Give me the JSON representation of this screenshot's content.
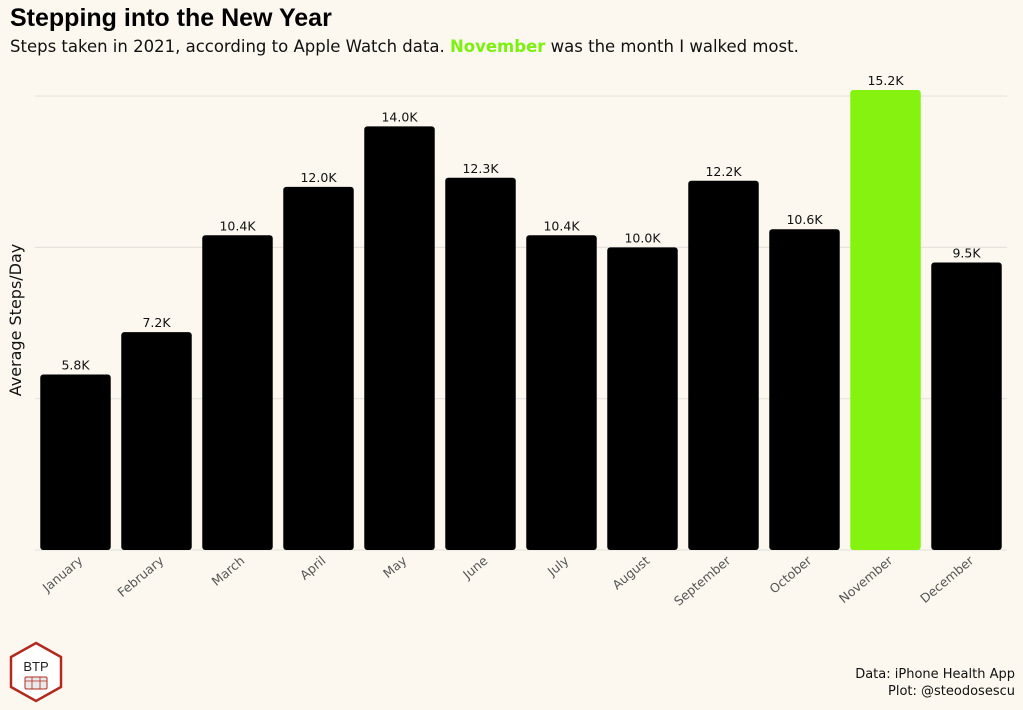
{
  "header": {
    "title": "Stepping into the New Year",
    "subtitle_before": "Steps taken in 2021, according to Apple Watch data.",
    "subtitle_highlight": "November",
    "subtitle_after": "was the month I walked most."
  },
  "colors": {
    "background": "#fdf8ef",
    "bar": "#000000",
    "highlight": "#85f20f",
    "grid": "#e6e4df"
  },
  "chart_data": {
    "type": "bar",
    "title": "Stepping into the New Year",
    "ylabel": "Average Steps/Day",
    "xlabel": "",
    "categories": [
      "January",
      "February",
      "March",
      "April",
      "May",
      "June",
      "July",
      "August",
      "September",
      "October",
      "November",
      "December"
    ],
    "values": [
      5800,
      7200,
      10400,
      12000,
      14000,
      12300,
      10400,
      10000,
      12200,
      10600,
      15200,
      9500
    ],
    "data_labels": [
      "5.8K",
      "7.2K",
      "10.4K",
      "12.0K",
      "14.0K",
      "12.3K",
      "10.4K",
      "10.0K",
      "12.2K",
      "10.6K",
      "15.2K",
      "9.5K"
    ],
    "highlight_category": "November",
    "ylim": [
      0,
      15200
    ],
    "gridlines": [
      0,
      5000,
      10000,
      15000
    ],
    "grid": true,
    "legend": "none"
  },
  "caption": {
    "line1": "Data: iPhone Health App",
    "line2": "Plot: @steodosescu"
  },
  "logo": {
    "text": "BTP"
  }
}
